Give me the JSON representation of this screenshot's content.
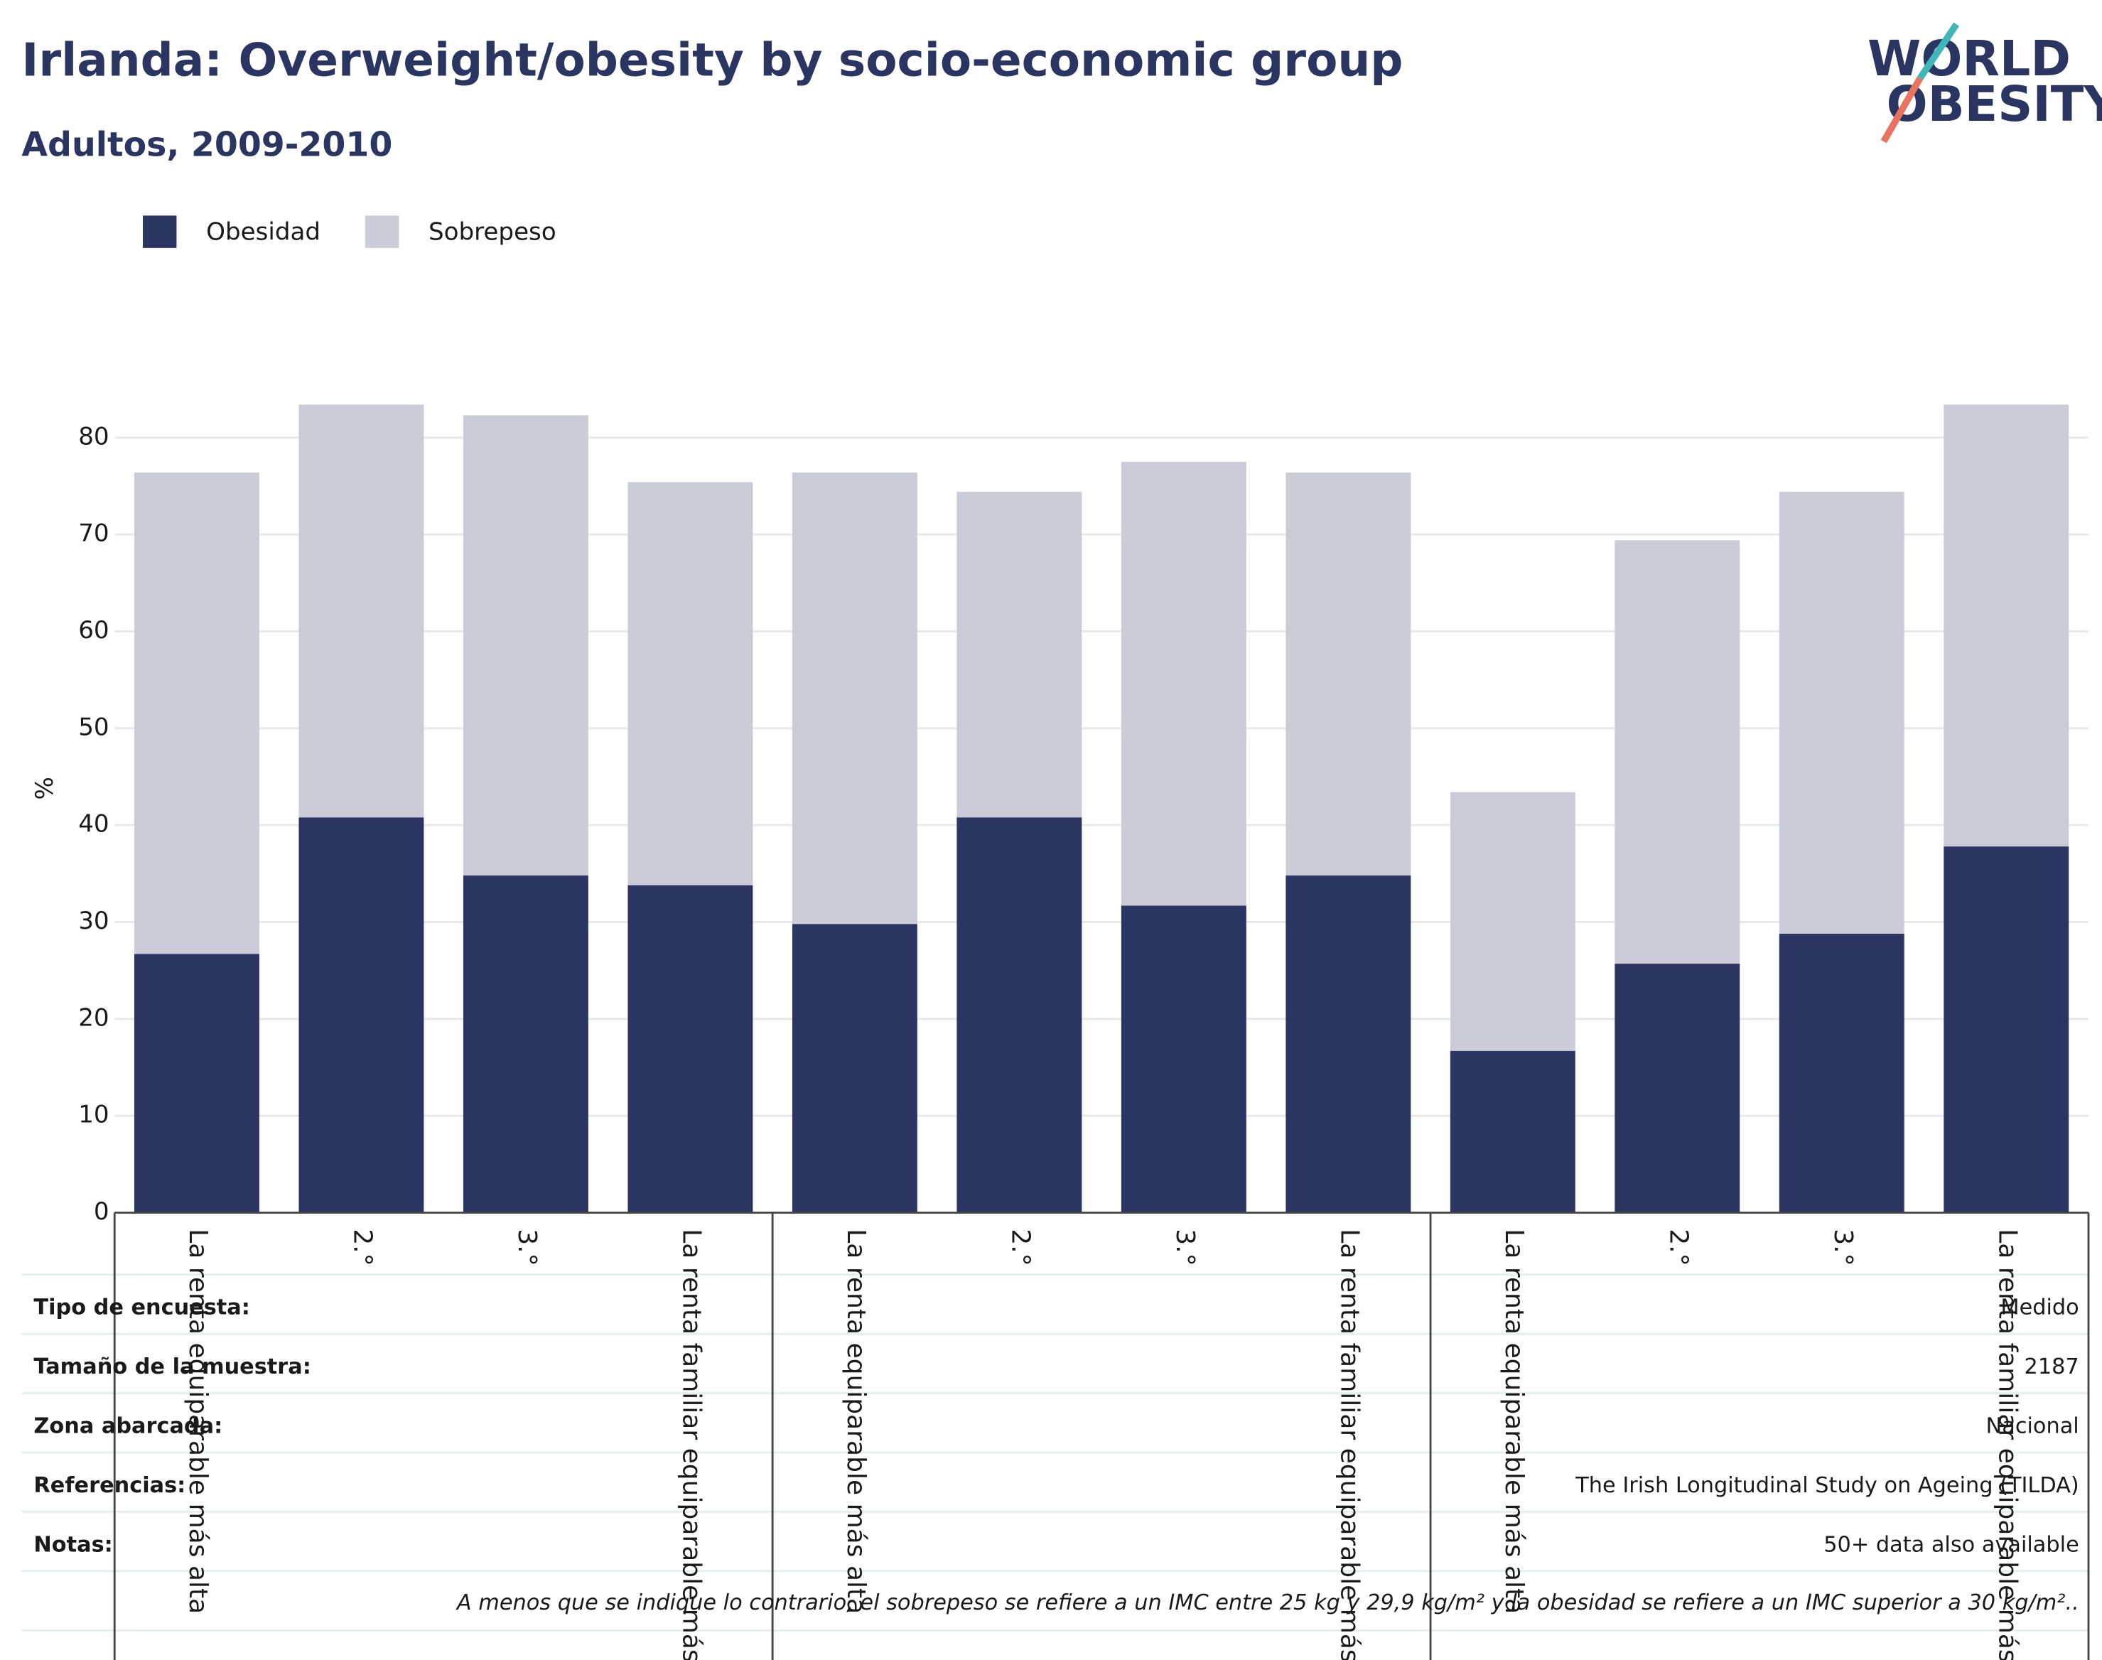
{
  "chart_data": {
    "type": "stacked-bar",
    "title": "Irlanda: Overweight/obesity by socio-economic group",
    "subtitle": "Adultos, 2009-2010",
    "y_label": "%",
    "categories": [
      "La renta equiparable más alta",
      "2.°",
      "3.°",
      "La renta familiar equiparable más baja",
      "La renta equiparable más alta",
      "2.°",
      "3.°",
      "La renta familiar equiparable más baja",
      "La renta equiparable más alta",
      "2.°",
      "3.°",
      "La renta familiar equiparable más baja"
    ],
    "series": [
      {
        "name": "Obesidad",
        "color": "#2a3561",
        "values": [
          26.7,
          40.8,
          34.8,
          33.8,
          29.8,
          40.8,
          31.7,
          34.8,
          16.7,
          25.7,
          28.8,
          37.8
        ]
      },
      {
        "name": "Sobrepeso",
        "color": "#cbccd8",
        "values": [
          49.7,
          42.6,
          47.5,
          41.6,
          46.6,
          33.6,
          45.8,
          41.6,
          26.7,
          43.7,
          45.6,
          45.6
        ]
      }
    ],
    "ylim": [
      0,
      84
    ],
    "yticks": [
      0,
      10,
      20,
      30,
      40,
      50,
      60,
      70,
      80
    ],
    "grid": true,
    "legend": "top-left"
  },
  "logo": {
    "line1": "WORLD",
    "line2": "OBESITY"
  },
  "table": {
    "rows": [
      [
        "Tipo de encuesta:",
        "Medido"
      ],
      [
        "Tamaño de la muestra:",
        "2187"
      ],
      [
        "Zona abarcada:",
        "Nacional"
      ],
      [
        "Referencias:",
        "The Irish Longitudinal Study on Ageing (TILDA)"
      ],
      [
        "Notas:",
        "50+ data also available"
      ]
    ],
    "footnote": "A menos que se indique lo contrario, el sobrepeso se refiere a un IMC entre 25 kg y 29,9 kg/m² y la obesidad se refiere a un IMC superior a 30 kg/m².."
  }
}
